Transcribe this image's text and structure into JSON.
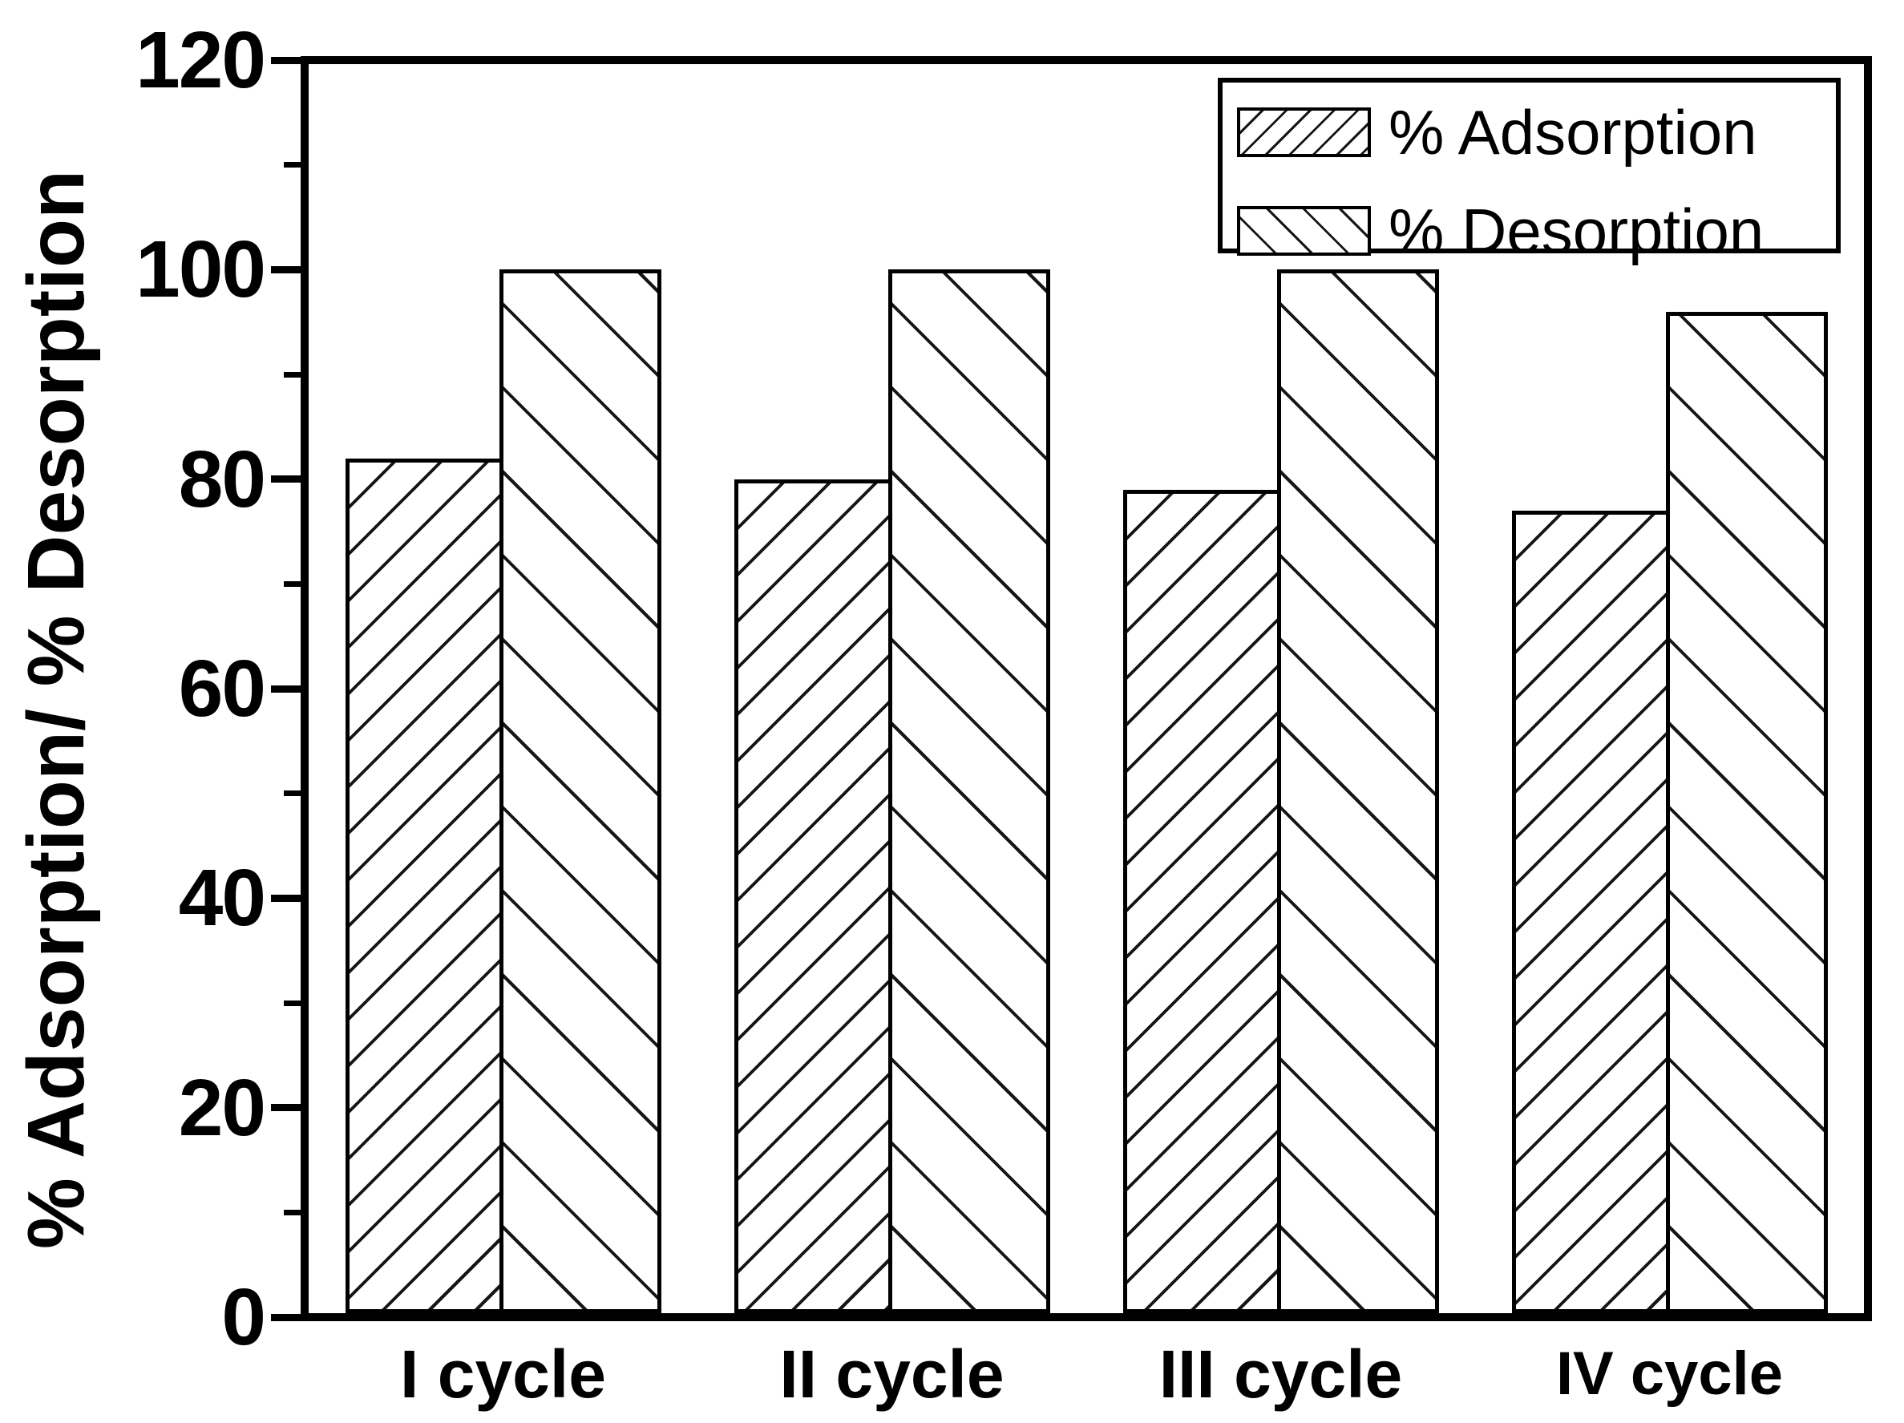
{
  "figure": {
    "background": "#ffffff",
    "foreground": "#000000"
  },
  "chart_data": {
    "type": "bar",
    "categories": [
      "I cycle",
      "II cycle",
      "III cycle",
      "IV cycle"
    ],
    "series": [
      {
        "name": "% Adsorption",
        "hatch": "forward-diagonal",
        "values": [
          82,
          80,
          79,
          77
        ]
      },
      {
        "name": "% Desorption",
        "hatch": "backward-diagonal",
        "values": [
          100,
          100,
          100,
          96
        ]
      }
    ],
    "title": "",
    "xlabel": "",
    "ylabel": "% Adsorption/ % Desorption",
    "ylim": [
      0,
      120
    ],
    "ytick_step": 20,
    "yminor_step": 10,
    "ytick_labels": [
      "0",
      "20",
      "40",
      "60",
      "80",
      "100",
      "120"
    ],
    "bar_fill": "#ffffff",
    "bar_edge": "#000000",
    "grid": false,
    "legend": {
      "position": "top-right"
    }
  }
}
